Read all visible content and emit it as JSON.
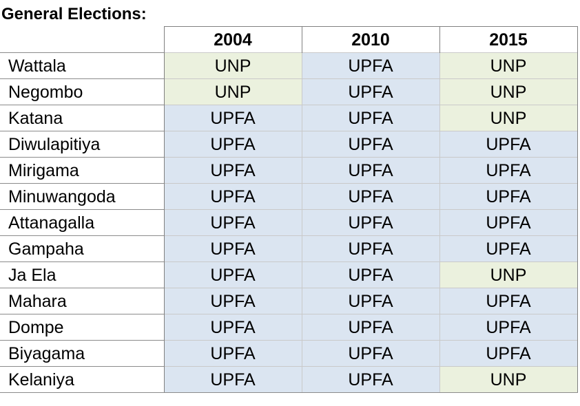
{
  "title": "General Elections:",
  "colors": {
    "UPFA": "#dbe5f1",
    "UNP": "#ebf1de"
  },
  "years": [
    "2004",
    "2010",
    "2015"
  ],
  "rows": [
    {
      "name": "Wattala",
      "results": [
        "UNP",
        "UPFA",
        "UNP"
      ]
    },
    {
      "name": "Negombo",
      "results": [
        "UNP",
        "UPFA",
        "UNP"
      ]
    },
    {
      "name": "Katana",
      "results": [
        "UPFA",
        "UPFA",
        "UNP"
      ]
    },
    {
      "name": "Diwulapitiya",
      "results": [
        "UPFA",
        "UPFA",
        "UPFA"
      ]
    },
    {
      "name": "Mirigama",
      "results": [
        "UPFA",
        "UPFA",
        "UPFA"
      ]
    },
    {
      "name": "Minuwangoda",
      "results": [
        "UPFA",
        "UPFA",
        "UPFA"
      ]
    },
    {
      "name": "Attanagalla",
      "results": [
        "UPFA",
        "UPFA",
        "UPFA"
      ]
    },
    {
      "name": "Gampaha",
      "results": [
        "UPFA",
        "UPFA",
        "UPFA"
      ]
    },
    {
      "name": "Ja Ela",
      "results": [
        "UPFA",
        "UPFA",
        "UNP"
      ]
    },
    {
      "name": "Mahara",
      "results": [
        "UPFA",
        "UPFA",
        "UPFA"
      ]
    },
    {
      "name": "Dompe",
      "results": [
        "UPFA",
        "UPFA",
        "UPFA"
      ]
    },
    {
      "name": "Biyagama",
      "results": [
        "UPFA",
        "UPFA",
        "UPFA"
      ]
    },
    {
      "name": "Kelaniya",
      "results": [
        "UPFA",
        "UPFA",
        "UNP"
      ]
    }
  ]
}
